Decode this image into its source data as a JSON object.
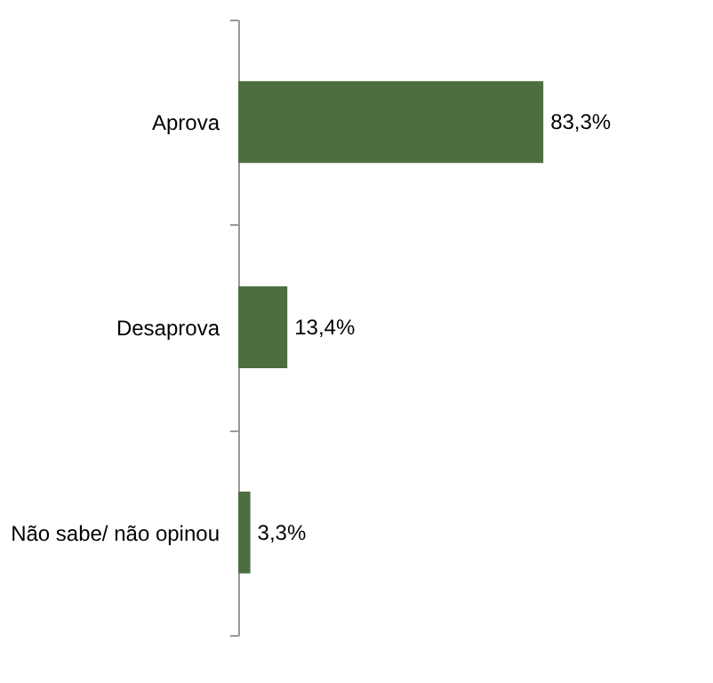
{
  "chart_data": {
    "type": "bar",
    "orientation": "horizontal",
    "categories": [
      "Aprova",
      "Desaprova",
      "Não sabe/ não opinou"
    ],
    "values": [
      83.3,
      13.4,
      3.3
    ],
    "value_labels": [
      "83,3%",
      "13,4%",
      "3,3%"
    ],
    "color": "#4d6e41",
    "grid": false
  }
}
